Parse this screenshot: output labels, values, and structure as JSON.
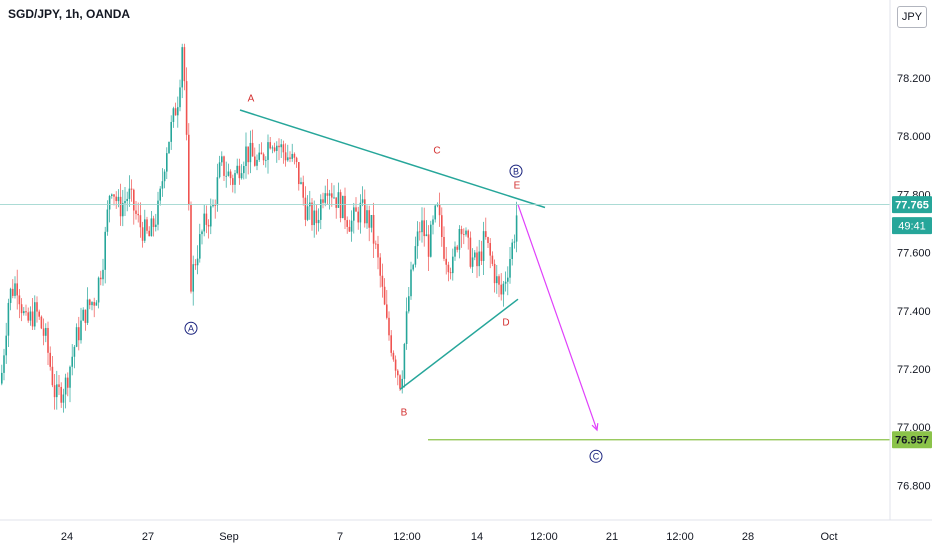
{
  "header": {
    "symbol": "SGD/JPY, 1h, OANDA",
    "currency": "JPY"
  },
  "colors": {
    "candle_up": "#26a69a",
    "candle_down": "#ef5350",
    "trendline": "#26a69a",
    "projection": "#e040fb",
    "target_line": "#8bc34a",
    "wave_label_minor": "#d32f2f",
    "wave_label_major": "#1a237e",
    "price_badge": "#26a69a",
    "target_badge": "#8bc34a"
  },
  "chart_data": {
    "type": "candlestick",
    "instrument": "SGD/JPY",
    "timeframe": "1h",
    "source": "OANDA",
    "ylim": [
      76.62,
      78.4
    ],
    "y_ticks": [
      "78.200",
      "78.000",
      "77.800",
      "77.600",
      "77.400",
      "77.200",
      "77.000",
      "76.800"
    ],
    "top_tick_partial": "7",
    "x_ticks": [
      "24",
      "27",
      "Sep",
      "7",
      "12:00",
      "14",
      "12:00",
      "21",
      "12:00",
      "28",
      "Oct"
    ],
    "price_path": [
      [
        0,
        77.15
      ],
      [
        8,
        77.45
      ],
      [
        16,
        77.5
      ],
      [
        25,
        77.35
      ],
      [
        35,
        77.4
      ],
      [
        45,
        77.3
      ],
      [
        55,
        77.1
      ],
      [
        65,
        77.15
      ],
      [
        75,
        77.3
      ],
      [
        85,
        77.4
      ],
      [
        95,
        77.45
      ],
      [
        103,
        77.6
      ],
      [
        110,
        77.85
      ],
      [
        118,
        77.75
      ],
      [
        128,
        77.8
      ],
      [
        138,
        77.7
      ],
      [
        148,
        77.65
      ],
      [
        158,
        77.75
      ],
      [
        165,
        77.95
      ],
      [
        172,
        78.05
      ],
      [
        178,
        78.15
      ],
      [
        182,
        78.35
      ],
      [
        186,
        77.95
      ],
      [
        190,
        77.5
      ],
      [
        196,
        77.6
      ],
      [
        204,
        77.7
      ],
      [
        212,
        77.75
      ],
      [
        220,
        77.9
      ],
      [
        232,
        77.85
      ],
      [
        245,
        77.95
      ],
      [
        258,
        77.9
      ],
      [
        270,
        78.0
      ],
      [
        282,
        77.95
      ],
      [
        295,
        77.9
      ],
      [
        305,
        77.75
      ],
      [
        315,
        77.7
      ],
      [
        325,
        77.85
      ],
      [
        333,
        77.8
      ],
      [
        342,
        77.75
      ],
      [
        350,
        77.7
      ],
      [
        360,
        77.75
      ],
      [
        370,
        77.7
      ],
      [
        378,
        77.55
      ],
      [
        386,
        77.35
      ],
      [
        393,
        77.25
      ],
      [
        400,
        77.15
      ],
      [
        408,
        77.45
      ],
      [
        414,
        77.6
      ],
      [
        420,
        77.7
      ],
      [
        428,
        77.62
      ],
      [
        436,
        77.75
      ],
      [
        444,
        77.6
      ],
      [
        452,
        77.55
      ],
      [
        460,
        77.72
      ],
      [
        468,
        77.6
      ],
      [
        476,
        77.55
      ],
      [
        484,
        77.65
      ],
      [
        492,
        77.55
      ],
      [
        500,
        77.45
      ],
      [
        507,
        77.55
      ],
      [
        513,
        77.65
      ],
      [
        517,
        77.765
      ]
    ],
    "last_price": "77.765",
    "countdown": "49:41",
    "target_price": "76.957",
    "wave_labels": {
      "minor": [
        {
          "label": "A",
          "x": 251,
          "y": 78.12
        },
        {
          "label": "B",
          "x": 404,
          "y": 77.04
        },
        {
          "label": "C",
          "x": 437,
          "y": 77.94
        },
        {
          "label": "D",
          "x": 506,
          "y": 77.35
        },
        {
          "label": "E",
          "x": 517,
          "y": 77.82
        }
      ],
      "major": [
        {
          "label": "A",
          "x": 191,
          "y": 77.34
        },
        {
          "label": "B",
          "x": 516,
          "y": 77.88
        },
        {
          "label": "C",
          "x": 596,
          "y": 76.9
        }
      ]
    },
    "trendlines": [
      {
        "name": "upper",
        "x": [
          240,
          545
        ],
        "y": [
          78.09,
          77.755
        ]
      },
      {
        "name": "lower",
        "x": [
          400,
          518
        ],
        "y": [
          77.13,
          77.44
        ]
      }
    ],
    "projection": {
      "x": [
        518,
        597
      ],
      "y": [
        77.765,
        76.99
      ]
    },
    "target_line_x_start": 428
  }
}
